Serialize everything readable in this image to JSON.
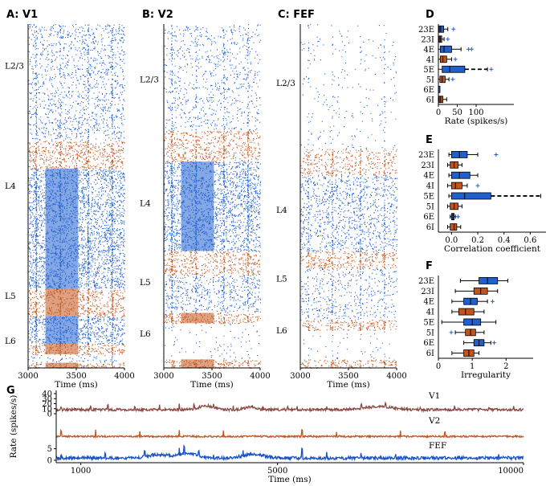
{
  "colors": {
    "exc": "#1f5fd0",
    "inh": "#c2551c",
    "v1": "#8b4a46",
    "v2": "#c8571c",
    "fef": "#1a52c4"
  },
  "raster_panels": [
    {
      "id": "A",
      "title": "A: V1",
      "xlabel": "Time (ms)",
      "xticks": [
        "3000",
        "3500",
        "4000"
      ],
      "layer_labels": [
        "L2/3",
        "L4",
        "L5",
        "L6"
      ],
      "bands": [
        {
          "pop": "23E",
          "type": "E",
          "y0": 0.0,
          "y1": 0.34,
          "density": 0.45
        },
        {
          "pop": "23I",
          "type": "I",
          "y0": 0.34,
          "y1": 0.42,
          "density": 0.8
        },
        {
          "pop": "4E",
          "type": "E",
          "y0": 0.42,
          "y1": 0.77,
          "density": 0.95
        },
        {
          "pop": "4I",
          "type": "I",
          "y0": 0.77,
          "y1": 0.85,
          "density": 0.85
        },
        {
          "pop": "5E",
          "type": "E",
          "y0": 0.85,
          "y1": 0.93,
          "density": 0.95
        },
        {
          "pop": "5I",
          "type": "I",
          "y0": 0.93,
          "y1": 0.96,
          "density": 0.9
        },
        {
          "pop": "6E",
          "type": "E",
          "y0": 0.96,
          "y1": 0.985,
          "density": 0.3
        },
        {
          "pop": "6I",
          "type": "I",
          "y0": 0.985,
          "y1": 1.0,
          "density": 0.9
        }
      ]
    },
    {
      "id": "B",
      "title": "B: V2",
      "xlabel": "Time (ms)",
      "xticks": [
        "3000",
        "3500",
        "4000"
      ],
      "layer_labels": [
        "L2/3",
        "L4",
        "L5",
        "L6"
      ],
      "bands": [
        {
          "pop": "23E",
          "type": "E",
          "y0": 0.0,
          "y1": 0.31,
          "density": 0.3
        },
        {
          "pop": "23I",
          "type": "I",
          "y0": 0.31,
          "y1": 0.4,
          "density": 0.7
        },
        {
          "pop": "4E",
          "type": "E",
          "y0": 0.4,
          "y1": 0.66,
          "density": 0.9
        },
        {
          "pop": "4I",
          "type": "I",
          "y0": 0.66,
          "y1": 0.73,
          "density": 0.75
        },
        {
          "pop": "5E",
          "type": "E",
          "y0": 0.73,
          "y1": 0.84,
          "density": 0.55
        },
        {
          "pop": "5I",
          "type": "I",
          "y0": 0.84,
          "y1": 0.87,
          "density": 0.85
        },
        {
          "pop": "6E",
          "type": "E",
          "y0": 0.87,
          "y1": 0.975,
          "density": 0.08
        },
        {
          "pop": "6I",
          "type": "I",
          "y0": 0.975,
          "y1": 1.0,
          "density": 0.85
        }
      ]
    },
    {
      "id": "C",
      "title": "C: FEF",
      "xlabel": "Time (ms)",
      "xticks": [
        "3000",
        "3500",
        "4000"
      ],
      "layer_labels": [
        "L2/3",
        "L4",
        "L5",
        "L6"
      ],
      "bands": [
        {
          "pop": "23E",
          "type": "E",
          "y0": 0.0,
          "y1": 0.36,
          "density": 0.08
        },
        {
          "pop": "23I",
          "type": "I",
          "y0": 0.36,
          "y1": 0.44,
          "density": 0.55
        },
        {
          "pop": "4E",
          "type": "E",
          "y0": 0.44,
          "y1": 0.66,
          "density": 0.55
        },
        {
          "pop": "4I",
          "type": "I",
          "y0": 0.66,
          "y1": 0.71,
          "density": 0.75
        },
        {
          "pop": "5E",
          "type": "E",
          "y0": 0.71,
          "y1": 0.86,
          "density": 0.35
        },
        {
          "pop": "5I",
          "type": "I",
          "y0": 0.86,
          "y1": 0.89,
          "density": 0.75
        },
        {
          "pop": "6E",
          "type": "E",
          "y0": 0.89,
          "y1": 0.975,
          "density": 0.06
        },
        {
          "pop": "6I",
          "type": "I",
          "y0": 0.975,
          "y1": 1.0,
          "density": 0.75
        }
      ]
    }
  ],
  "chart_data": [
    {
      "type": "box",
      "id": "D",
      "title": "D",
      "xlabel": "Rate (spikes/s)",
      "xlim": [
        0,
        200
      ],
      "xticks": [
        0,
        50,
        100
      ],
      "xticklabels": [
        "0",
        "50",
        "100"
      ],
      "categories": [
        "23E",
        "23I",
        "4E",
        "4I",
        "5E",
        "5I",
        "6E",
        "6I"
      ],
      "boxes": [
        {
          "min": 0,
          "q1": 2,
          "median": 6,
          "q3": 14,
          "max": 25,
          "outliers": [
            40
          ]
        },
        {
          "min": 0,
          "q1": 2,
          "median": 5,
          "q3": 9,
          "max": 15,
          "outliers": [
            25
          ]
        },
        {
          "min": 0,
          "q1": 5,
          "median": 15,
          "q3": 35,
          "max": 60,
          "outliers": [
            80,
            88
          ]
        },
        {
          "min": 0,
          "q1": 5,
          "median": 12,
          "q3": 22,
          "max": 35,
          "outliers": [
            45
          ]
        },
        {
          "min": 0,
          "q1": 10,
          "median": 30,
          "q3": 70,
          "max": 130,
          "outliers": [
            140
          ]
        },
        {
          "min": 0,
          "q1": 4,
          "median": 10,
          "q3": 18,
          "max": 28,
          "outliers": [
            38
          ]
        },
        {
          "min": 0,
          "q1": 0,
          "median": 0,
          "q3": 1,
          "max": 1,
          "outliers": []
        },
        {
          "min": 0,
          "q1": 2,
          "median": 6,
          "q3": 12,
          "max": 22,
          "outliers": []
        }
      ]
    },
    {
      "type": "box",
      "id": "E",
      "title": "E",
      "xlabel": "Correlation coefficient",
      "xlim": [
        -0.1,
        0.72
      ],
      "xticks": [
        0.0,
        0.2,
        0.4,
        0.6
      ],
      "xticklabels": [
        "0.0",
        "0.2",
        "0.4",
        "0.6"
      ],
      "categories": [
        "23E",
        "23I",
        "4E",
        "4I",
        "5E",
        "5I",
        "6E",
        "6I"
      ],
      "boxes": [
        {
          "min": -0.02,
          "q1": 0.0,
          "median": 0.06,
          "q3": 0.12,
          "max": 0.2,
          "outliers": [
            0.34
          ]
        },
        {
          "min": -0.03,
          "q1": -0.01,
          "median": 0.02,
          "q3": 0.05,
          "max": 0.08,
          "outliers": []
        },
        {
          "min": -0.02,
          "q1": 0.0,
          "median": 0.06,
          "q3": 0.14,
          "max": 0.2,
          "outliers": []
        },
        {
          "min": -0.03,
          "q1": 0.0,
          "median": 0.03,
          "q3": 0.08,
          "max": 0.12,
          "outliers": [
            0.2
          ]
        },
        {
          "min": -0.02,
          "q1": 0.0,
          "median": 0.1,
          "q3": 0.3,
          "max": 0.68,
          "outliers": []
        },
        {
          "min": -0.03,
          "q1": -0.01,
          "median": 0.02,
          "q3": 0.05,
          "max": 0.08,
          "outliers": []
        },
        {
          "min": -0.01,
          "q1": 0.0,
          "median": 0.01,
          "q3": 0.02,
          "max": 0.03,
          "outliers": [
            0.05
          ]
        },
        {
          "min": -0.03,
          "q1": -0.01,
          "median": 0.02,
          "q3": 0.04,
          "max": 0.07,
          "outliers": []
        }
      ]
    },
    {
      "type": "box",
      "id": "F",
      "title": "F",
      "xlabel": "Irregularity",
      "xlim": [
        0,
        2.8
      ],
      "xticks": [
        0,
        1,
        2
      ],
      "xticklabels": [
        "0",
        "1",
        "2"
      ],
      "categories": [
        "23E",
        "23I",
        "4E",
        "4I",
        "5E",
        "5I",
        "6E",
        "6I"
      ],
      "boxes": [
        {
          "min": 0.65,
          "q1": 1.2,
          "median": 1.45,
          "q3": 1.75,
          "max": 2.05,
          "outliers": []
        },
        {
          "min": 0.5,
          "q1": 1.05,
          "median": 1.25,
          "q3": 1.45,
          "max": 1.75,
          "outliers": []
        },
        {
          "min": 0.4,
          "q1": 0.75,
          "median": 0.95,
          "q3": 1.15,
          "max": 1.45,
          "outliers": [
            1.6
          ]
        },
        {
          "min": 0.4,
          "q1": 0.6,
          "median": 0.8,
          "q3": 1.05,
          "max": 1.35,
          "outliers": []
        },
        {
          "min": 0.1,
          "q1": 0.75,
          "median": 1.0,
          "q3": 1.25,
          "max": 1.7,
          "outliers": []
        },
        {
          "min": 0.5,
          "q1": 0.8,
          "median": 0.95,
          "q3": 1.1,
          "max": 1.35,
          "outliers": [
            0.38
          ]
        },
        {
          "min": 0.75,
          "q1": 1.05,
          "median": 1.2,
          "q3": 1.35,
          "max": 1.55,
          "outliers": [
            1.65
          ]
        },
        {
          "min": 0.4,
          "q1": 0.75,
          "median": 0.9,
          "q3": 1.05,
          "max": 1.2,
          "outliers": []
        }
      ]
    },
    {
      "type": "line",
      "id": "G",
      "title": "G",
      "xlabel": "Time (ms)",
      "ylabel": "Rate (spikes/s)",
      "xlim": [
        500,
        10000
      ],
      "xticks": [
        1000,
        5000,
        10000
      ],
      "xticklabels": [
        "1000",
        "5000",
        "10000"
      ],
      "series": [
        {
          "name": "V1",
          "ylim": [
            0,
            40
          ],
          "yticks": [
            0,
            10,
            20,
            30,
            40
          ],
          "baseline": 8,
          "noise": 2.5,
          "burst_height": 14,
          "bursts": [
            [
              600,
              7
            ],
            [
              1200,
              6
            ],
            [
              1550,
              8
            ],
            [
              2100,
              6
            ],
            [
              2600,
              9
            ],
            [
              3000,
              14
            ],
            [
              3300,
              7
            ],
            [
              3700,
              5
            ],
            [
              4100,
              8
            ],
            [
              4700,
              7
            ],
            [
              5200,
              6
            ],
            [
              5400,
              9
            ],
            [
              6000,
              6
            ],
            [
              6700,
              7
            ],
            [
              7200,
              8
            ],
            [
              7900,
              6
            ],
            [
              8600,
              7
            ],
            [
              9300,
              6
            ],
            [
              9800,
              5
            ]
          ],
          "humps": [
            [
              3550,
              200,
              8
            ],
            [
              4450,
              150,
              6
            ],
            [
              7050,
              400,
              6
            ]
          ]
        },
        {
          "name": "V2",
          "ylim": [
            0,
            30
          ],
          "yticks": [],
          "baseline": 2,
          "noise": 1.2,
          "burst_height": 10,
          "bursts": [
            [
              600,
              8
            ],
            [
              1300,
              9
            ],
            [
              2200,
              8
            ],
            [
              3000,
              10
            ],
            [
              3900,
              8
            ],
            [
              5500,
              9
            ],
            [
              6200,
              7
            ],
            [
              7500,
              8
            ],
            [
              8400,
              7
            ]
          ],
          "humps": []
        },
        {
          "name": "FEF",
          "ylim": [
            0,
            8
          ],
          "yticks": [
            0,
            5
          ],
          "baseline": 1,
          "noise": 0.7,
          "burst_height": 4,
          "bursts": [
            [
              600,
              1.5
            ],
            [
              1500,
              1.8
            ],
            [
              2300,
              2
            ],
            [
              3000,
              3.5
            ],
            [
              3100,
              3
            ],
            [
              3400,
              2.5
            ],
            [
              3700,
              2
            ],
            [
              4300,
              2
            ],
            [
              5500,
              4
            ],
            [
              6000,
              2
            ],
            [
              6700,
              1.5
            ],
            [
              7400,
              1.5
            ],
            [
              8400,
              1.2
            ],
            [
              9500,
              1.2
            ]
          ],
          "humps": [
            [
              2600,
              300,
              1.5
            ],
            [
              3200,
              250,
              2
            ],
            [
              4500,
              300,
              1.5
            ]
          ]
        }
      ]
    }
  ]
}
